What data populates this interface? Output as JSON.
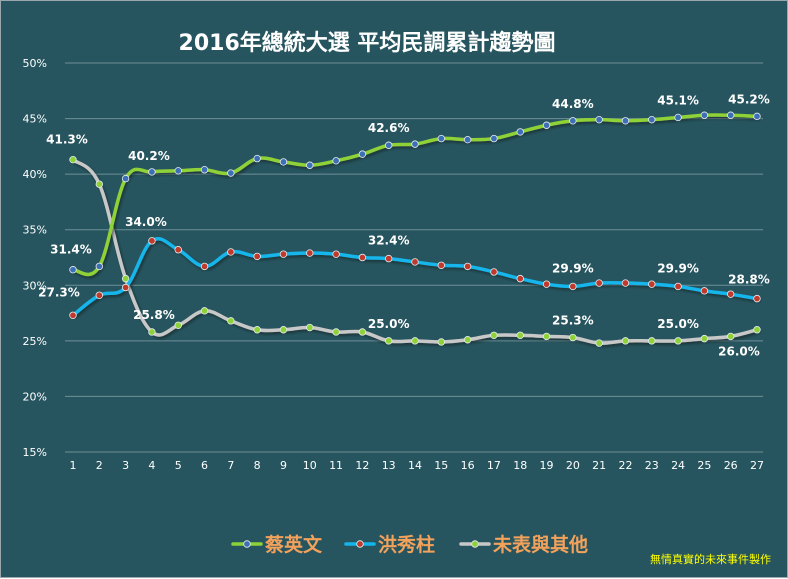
{
  "chart_data": {
    "type": "line",
    "title": "2016年總統大選 平均民調累計趨勢圖",
    "categories": [
      "1",
      "2",
      "3",
      "4",
      "5",
      "6",
      "7",
      "8",
      "9",
      "10",
      "11",
      "12",
      "13",
      "14",
      "15",
      "16",
      "17",
      "18",
      "19",
      "20",
      "21",
      "22",
      "23",
      "24",
      "25",
      "26",
      "27"
    ],
    "y_ticks": [
      "15%",
      "20%",
      "25%",
      "30%",
      "35%",
      "40%",
      "45%",
      "50%"
    ],
    "ylim": [
      15,
      50
    ],
    "grid": true,
    "legend_position": "bottom",
    "series": [
      {
        "name": "蔡英文",
        "color": "#8ed239",
        "marker_color": "#3d6fb7",
        "values": [
          31.4,
          31.7,
          39.6,
          40.2,
          40.3,
          40.4,
          40.1,
          41.4,
          41.1,
          40.8,
          41.2,
          41.8,
          42.6,
          42.7,
          43.2,
          43.1,
          43.2,
          43.8,
          44.4,
          44.8,
          44.9,
          44.8,
          44.9,
          45.1,
          45.3,
          45.3,
          45.2
        ],
        "data_labels": [
          {
            "index": 0,
            "text": "31.4%"
          },
          {
            "index": 3,
            "text": "40.2%"
          },
          {
            "index": 12,
            "text": "42.6%"
          },
          {
            "index": 19,
            "text": "44.8%"
          },
          {
            "index": 23,
            "text": "45.1%"
          },
          {
            "index": 26,
            "text": "45.2%"
          }
        ]
      },
      {
        "name": "洪秀柱",
        "color": "#12b5eb",
        "marker_color": "#c0392b",
        "values": [
          27.3,
          29.1,
          29.8,
          34.0,
          33.2,
          31.7,
          33.0,
          32.6,
          32.8,
          32.9,
          32.8,
          32.5,
          32.4,
          32.1,
          31.8,
          31.7,
          31.2,
          30.6,
          30.1,
          29.9,
          30.2,
          30.2,
          30.1,
          29.9,
          29.5,
          29.2,
          28.8
        ],
        "data_labels": [
          {
            "index": 0,
            "text": "27.3%"
          },
          {
            "index": 3,
            "text": "34.0%"
          },
          {
            "index": 12,
            "text": "32.4%"
          },
          {
            "index": 19,
            "text": "29.9%"
          },
          {
            "index": 23,
            "text": "29.9%"
          },
          {
            "index": 26,
            "text": "28.8%"
          }
        ]
      },
      {
        "name": "未表與其他",
        "color": "#c8c8c8",
        "marker_color": "#8ed239",
        "values": [
          41.3,
          39.1,
          30.6,
          25.8,
          26.4,
          27.7,
          26.8,
          26.0,
          26.0,
          26.2,
          25.8,
          25.8,
          25.0,
          25.0,
          24.9,
          25.1,
          25.5,
          25.5,
          25.4,
          25.3,
          24.8,
          25.0,
          25.0,
          25.0,
          25.2,
          25.4,
          26.0
        ],
        "data_labels": [
          {
            "index": 0,
            "text": "41.3%"
          },
          {
            "index": 3,
            "text": "25.8%"
          },
          {
            "index": 12,
            "text": "25.0%"
          },
          {
            "index": 19,
            "text": "25.3%"
          },
          {
            "index": 23,
            "text": "25.0%"
          },
          {
            "index": 26,
            "text": "26.0%"
          }
        ]
      }
    ]
  },
  "credit": "無情真實的未來事件製作"
}
